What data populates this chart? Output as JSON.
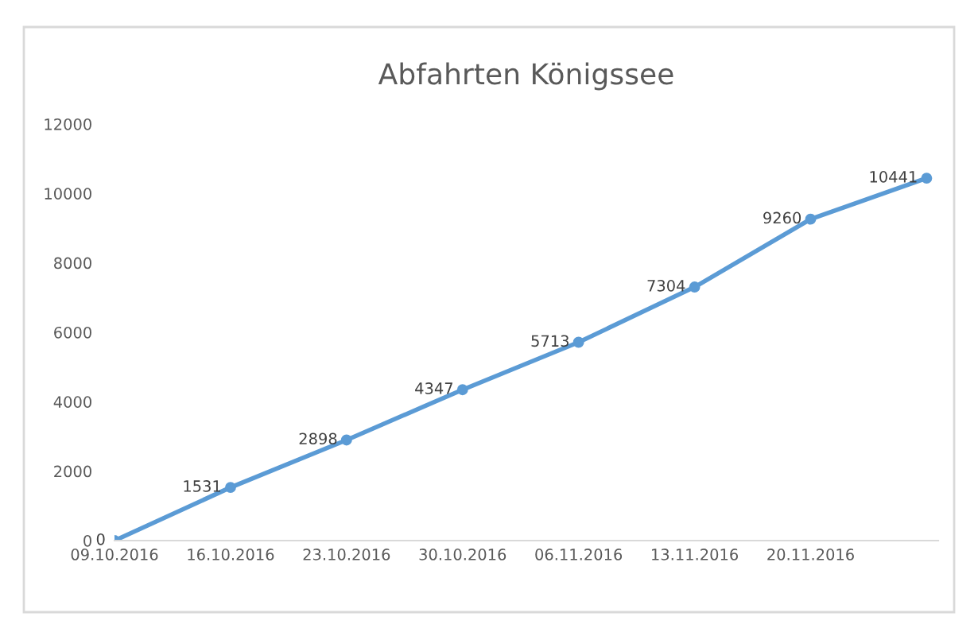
{
  "chart_data": {
    "type": "line",
    "title": "Abfahrten Königssee",
    "categories": [
      "09.10.2016",
      "16.10.2016",
      "23.10.2016",
      "30.10.2016",
      "06.11.2016",
      "13.11.2016",
      "20.11.2016",
      null
    ],
    "series": [
      {
        "color": "#5b9bd5",
        "values": [
          0,
          1531,
          2898,
          4347,
          5713,
          7304,
          9260,
          10441
        ]
      }
    ],
    "ylim": [
      0,
      12000
    ],
    "yticks": [
      0,
      2000,
      4000,
      6000,
      8000,
      10000,
      12000
    ],
    "grid": false,
    "marker": "circle",
    "line_style": "solid",
    "data_labels": true
  }
}
